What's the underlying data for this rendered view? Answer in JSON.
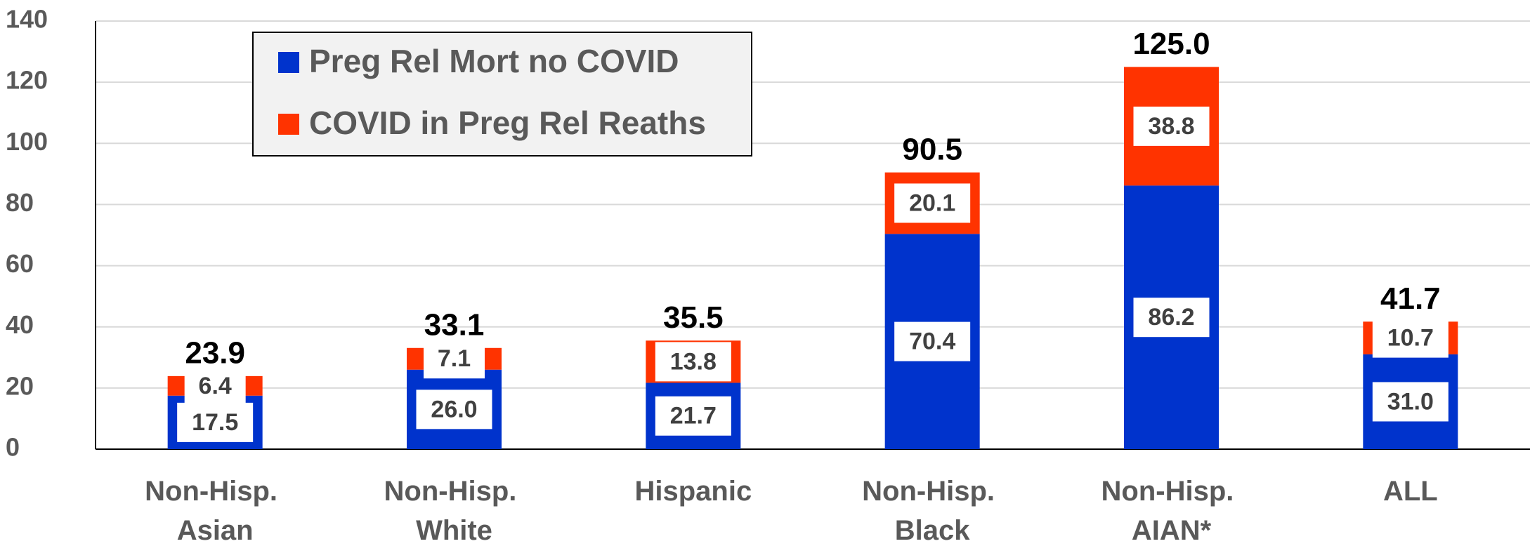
{
  "chart_data": {
    "type": "stacked_bar",
    "categories": [
      "Non-Hisp. Asian",
      "Non-Hisp. White",
      "Hispanic",
      "Non-Hisp. Black",
      "Non-Hisp. AIAN*",
      "ALL"
    ],
    "series": [
      {
        "name": "Preg Rel Mort no COVID",
        "color": "#0033cc",
        "values": [
          17.5,
          26.0,
          21.7,
          70.4,
          86.2,
          31.0
        ],
        "value_labels": [
          "17.5",
          "26.0",
          "21.7",
          "70.4",
          "86.2",
          "31.0"
        ]
      },
      {
        "name": "COVID in Preg Rel Reaths",
        "color": "#ff3300",
        "values": [
          6.4,
          7.1,
          13.8,
          20.1,
          38.8,
          10.7
        ],
        "value_labels": [
          "6.4",
          "7.1",
          "13.8",
          "20.1",
          "38.8",
          "10.7"
        ]
      }
    ],
    "totals": [
      23.9,
      33.1,
      35.5,
      90.5,
      125.0,
      41.7
    ],
    "total_labels": [
      "23.9",
      "33.1",
      "35.5",
      "90.5",
      "125.0",
      "41.7"
    ],
    "ylim": [
      0,
      140
    ],
    "yticks": [
      0,
      20,
      40,
      60,
      80,
      100,
      120,
      140
    ],
    "grid": true,
    "legend": "upper left"
  }
}
